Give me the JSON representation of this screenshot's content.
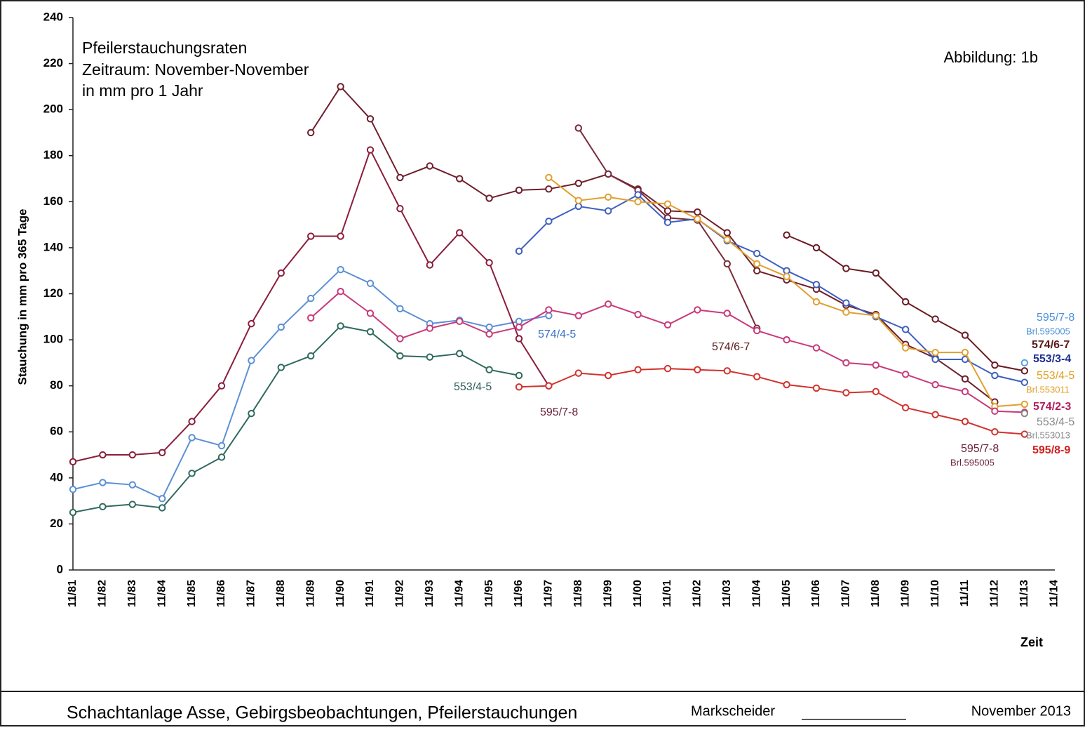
{
  "chart_data": {
    "type": "line",
    "title_lines": [
      "Pfeilerstauchungsraten",
      "Zeitraum: November-November",
      "in mm pro 1 Jahr"
    ],
    "figure_label": "Abbildung:  1b",
    "y_label": "Stauchung in mm pro 365 Tage",
    "x_label": "Zeit",
    "categories": [
      "11/81",
      "11/82",
      "11/83",
      "11/84",
      "11/85",
      "11/86",
      "11/87",
      "11/88",
      "11/89",
      "11/90",
      "11/91",
      "11/92",
      "11/93",
      "11/94",
      "11/95",
      "11/96",
      "11/97",
      "11/98",
      "11/99",
      "11/00",
      "11/01",
      "11/02",
      "11/03",
      "11/04",
      "11/05",
      "11/06",
      "11/07",
      "11/08",
      "11/09",
      "11/10",
      "11/11",
      "11/12",
      "11/13",
      "11/14"
    ],
    "ylim": [
      0,
      240
    ],
    "yticks": [
      0,
      20,
      40,
      60,
      80,
      100,
      120,
      140,
      160,
      180,
      200,
      220,
      240
    ],
    "series": [
      {
        "color": "#2f6a5e",
        "values": [
          25,
          27.5,
          28.5,
          27,
          42,
          49,
          68,
          88,
          93,
          106,
          103.5,
          93,
          92.5,
          94,
          87,
          84.5,
          null,
          null,
          null,
          null,
          null,
          null,
          null,
          null,
          null,
          null,
          null,
          null,
          null,
          null,
          null,
          null,
          null,
          null
        ]
      },
      {
        "color": "#5b8fd6",
        "values": [
          35,
          38,
          37,
          31,
          57.5,
          54,
          91,
          105.5,
          118,
          130.5,
          124.5,
          113.5,
          107,
          108.5,
          105.5,
          108,
          110.5,
          null,
          null,
          null,
          null,
          null,
          null,
          null,
          null,
          null,
          null,
          null,
          null,
          null,
          null,
          null,
          null,
          null
        ]
      },
      {
        "color": "#8b1d3b",
        "values": [
          47,
          50,
          50,
          51,
          64.5,
          80,
          107,
          129,
          145,
          145,
          182.5,
          157,
          132.5,
          146.5,
          133.5,
          100.5,
          80,
          null,
          null,
          null,
          null,
          null,
          null,
          null,
          null,
          null,
          null,
          null,
          null,
          null,
          null,
          null,
          null,
          null
        ]
      },
      {
        "color": "#6e1f2c",
        "values": [
          null,
          null,
          null,
          null,
          null,
          null,
          null,
          null,
          190,
          210,
          196,
          170.5,
          175.5,
          170,
          161.5,
          165,
          165.5,
          168,
          172,
          165.5,
          156,
          155.5,
          146.5,
          130,
          126,
          122,
          115,
          111,
          98,
          92,
          83,
          73,
          null,
          null
        ]
      },
      {
        "color": "#7a2a3a",
        "values": [
          null,
          null,
          null,
          null,
          null,
          null,
          null,
          null,
          null,
          null,
          null,
          null,
          null,
          null,
          null,
          null,
          null,
          192,
          172,
          165,
          153,
          152,
          133,
          105,
          null,
          null,
          null,
          null,
          null,
          null,
          null,
          null,
          null,
          null
        ]
      },
      {
        "color": "#6a1a22",
        "values": [
          null,
          null,
          null,
          null,
          null,
          null,
          null,
          null,
          null,
          null,
          null,
          null,
          null,
          null,
          null,
          null,
          null,
          null,
          null,
          null,
          null,
          null,
          null,
          null,
          145.5,
          140,
          131,
          129,
          116.5,
          109,
          102,
          89,
          86.5,
          null
        ]
      },
      {
        "color": "#3f5fc0",
        "values": [
          null,
          null,
          null,
          null,
          null,
          null,
          null,
          null,
          null,
          null,
          null,
          null,
          null,
          null,
          null,
          138.5,
          151.5,
          158,
          156,
          163,
          151,
          152.5,
          143,
          137.5,
          130,
          124,
          116,
          110,
          104.5,
          91.5,
          91.5,
          84.5,
          81.5,
          null
        ]
      },
      {
        "color": "#e0a030",
        "values": [
          null,
          null,
          null,
          null,
          null,
          null,
          null,
          null,
          null,
          null,
          null,
          null,
          null,
          null,
          null,
          null,
          170.5,
          160.5,
          162,
          160,
          159,
          152.5,
          143.5,
          133,
          127.5,
          116.5,
          112,
          110.5,
          96.5,
          94.5,
          94.5,
          71,
          72,
          null
        ]
      },
      {
        "color": "#c83a7a",
        "values": [
          null,
          null,
          null,
          null,
          null,
          null,
          null,
          null,
          109.5,
          121,
          111.5,
          100.5,
          105,
          108,
          102.5,
          105.5,
          113,
          110.5,
          115.5,
          111,
          106.5,
          113,
          111.5,
          104,
          100,
          96.5,
          90,
          89,
          85,
          80.5,
          77.5,
          69,
          68.5,
          null
        ]
      },
      {
        "color": "#d2322d",
        "values": [
          null,
          null,
          null,
          null,
          null,
          null,
          null,
          null,
          null,
          null,
          null,
          null,
          null,
          null,
          null,
          79.5,
          80,
          85.5,
          84.5,
          87,
          87.5,
          87,
          86.5,
          84,
          80.5,
          79,
          77,
          77.5,
          70.5,
          67.5,
          64.5,
          60,
          59,
          null
        ]
      },
      {
        "color": "#5aa0e0",
        "values": [
          null,
          null,
          null,
          null,
          null,
          null,
          null,
          null,
          null,
          null,
          null,
          null,
          null,
          null,
          null,
          null,
          null,
          null,
          null,
          null,
          null,
          null,
          null,
          null,
          null,
          null,
          null,
          null,
          null,
          null,
          null,
          null,
          90,
          null
        ]
      },
      {
        "color": "#888888",
        "values": [
          null,
          null,
          null,
          null,
          null,
          null,
          null,
          null,
          null,
          null,
          null,
          null,
          null,
          null,
          null,
          null,
          null,
          null,
          null,
          null,
          null,
          null,
          null,
          null,
          null,
          null,
          null,
          null,
          null,
          null,
          null,
          null,
          68,
          null
        ]
      }
    ],
    "annotations": [
      {
        "text": "574/4-5",
        "color": "#3b6fc4"
      },
      {
        "text": "553/4-5",
        "color": "#2f5d57"
      },
      {
        "text": "595/7-8",
        "color": "#6b1f3a"
      },
      {
        "text": "574/6-7",
        "color": "#5a1a1a"
      },
      {
        "text": "595/7-8",
        "color": "#6b1f3a"
      },
      {
        "text": "Brl.595005",
        "color": "#6b1f3a"
      },
      {
        "text": "595/7-8",
        "color": "#4a90d9"
      },
      {
        "text": "Brl.595005",
        "color": "#4a90d9"
      },
      {
        "text": "574/6-7",
        "color": "#5a1a1a"
      },
      {
        "text": "553/3-4",
        "color": "#1f2f8f"
      },
      {
        "text": "553/4-5",
        "color": "#e0a020"
      },
      {
        "text": "Brl.553011",
        "color": "#e0a020"
      },
      {
        "text": "574/2-3",
        "color": "#b0205a"
      },
      {
        "text": "553/4-5",
        "color": "#888888"
      },
      {
        "text": "Brl.553013",
        "color": "#888888"
      },
      {
        "text": "595/8-9",
        "color": "#d02020"
      }
    ],
    "footer": {
      "left": "Schachtanlage Asse, Gebirgsbeobachtungen, Pfeilerstauchungen",
      "middle": "Markscheider",
      "right": "November 2013"
    }
  }
}
